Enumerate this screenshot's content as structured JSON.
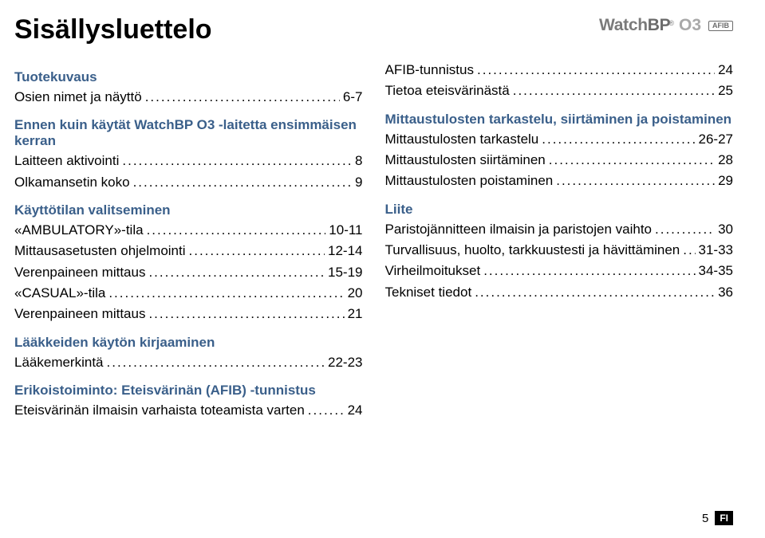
{
  "title": "Sisällysluettelo",
  "brand": {
    "watch": "Watch",
    "bp": "BP",
    "o3": "O3",
    "afib": "AFIB"
  },
  "left": [
    {
      "type": "section",
      "text": "Tuotekuvaus"
    },
    {
      "type": "item",
      "label": "Osien nimet ja näyttö",
      "page": "6-7"
    },
    {
      "type": "section",
      "text": "Ennen kuin käytät WatchBP O3 -laitetta ensimmäisen kerran"
    },
    {
      "type": "item",
      "label": "Laitteen aktivointi",
      "page": "8"
    },
    {
      "type": "item",
      "label": "Olkamansetin koko",
      "page": "9"
    },
    {
      "type": "section",
      "text": "Käyttötilan valitseminen"
    },
    {
      "type": "item",
      "label": "«AMBULATORY»-tila",
      "page": "10-11"
    },
    {
      "type": "item",
      "label": "Mittausasetusten ohjelmointi",
      "page": "12-14"
    },
    {
      "type": "item",
      "label": "Verenpaineen mittaus",
      "page": "15-19"
    },
    {
      "type": "item",
      "label": "«CASUAL»-tila",
      "page": "20"
    },
    {
      "type": "item",
      "label": "Verenpaineen mittaus",
      "page": "21"
    },
    {
      "type": "section",
      "text": "Lääkkeiden käytön kirjaaminen"
    },
    {
      "type": "item",
      "label": "Lääkemerkintä",
      "page": "22-23"
    },
    {
      "type": "section",
      "text": "Erikoistoiminto: Eteisvärinän (AFIB) -tunnistus"
    },
    {
      "type": "item",
      "label": "Eteisvärinän ilmaisin varhaista toteamista varten",
      "page": "24"
    }
  ],
  "right": [
    {
      "type": "item",
      "label": "AFIB-tunnistus",
      "page": "24"
    },
    {
      "type": "item",
      "label": "Tietoa eteisvärinästä",
      "page": "25"
    },
    {
      "type": "section",
      "text": "Mittaustulosten tarkastelu, siirtäminen ja poistaminen"
    },
    {
      "type": "item",
      "label": "Mittaustulosten tarkastelu",
      "page": "26-27"
    },
    {
      "type": "item",
      "label": "Mittaustulosten siirtäminen",
      "page": "28"
    },
    {
      "type": "item",
      "label": "Mittaustulosten poistaminen",
      "page": "29"
    },
    {
      "type": "section",
      "text": "Liite"
    },
    {
      "type": "item",
      "label": "Paristojännitteen ilmaisin ja paristojen vaihto",
      "page": "30"
    },
    {
      "type": "item",
      "label": "Turvallisuus, huolto, tarkkuustesti ja hävittäminen",
      "page": "31-33"
    },
    {
      "type": "item",
      "label": "Virheilmoitukset",
      "page": "34-35"
    },
    {
      "type": "item",
      "label": "Tekniset tiedot",
      "page": "36"
    }
  ],
  "footer": {
    "pageNum": "5",
    "lang": "FI"
  },
  "colors": {
    "sectionTitle": "#3a5f8a",
    "text": "#000000",
    "brandDark": "#6b6b6b",
    "brandLight": "#a9a9a9",
    "background": "#ffffff"
  }
}
